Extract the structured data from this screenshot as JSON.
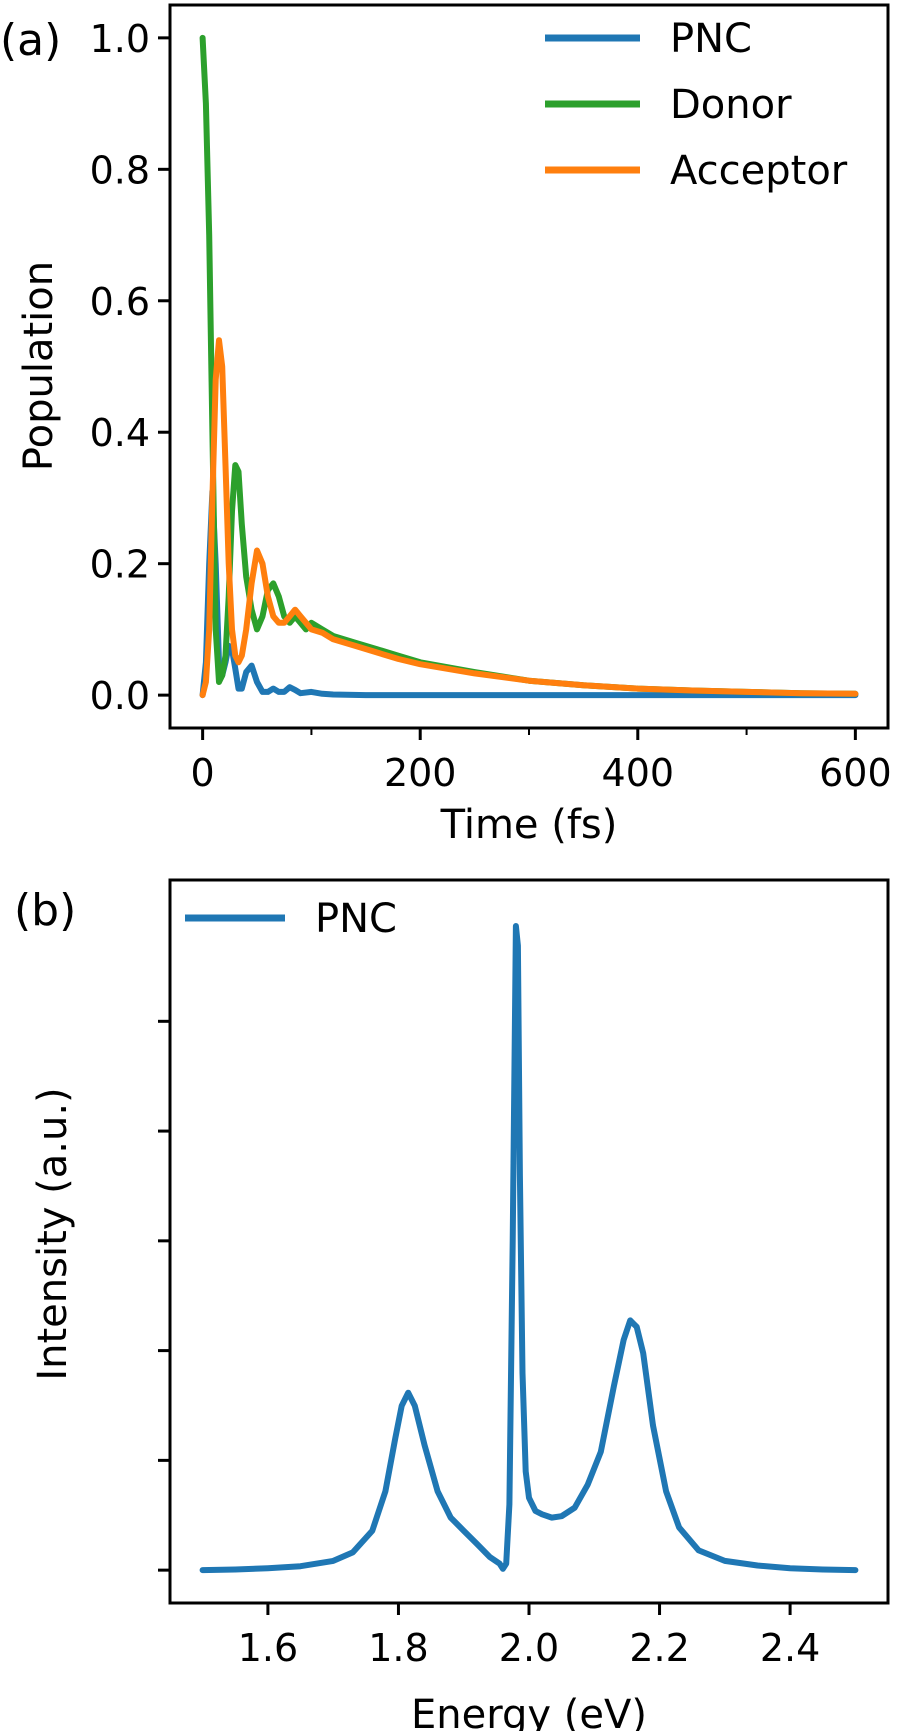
{
  "chart_data": [
    {
      "type": "line",
      "panel_label": "(a)",
      "xlabel": "Time (fs)",
      "ylabel": "Population",
      "xlim": [
        -30,
        630
      ],
      "ylim": [
        -0.05,
        1.05
      ],
      "xticks": [
        0,
        200,
        400,
        600
      ],
      "xtick_labels": [
        "0",
        "200",
        "400",
        "600"
      ],
      "xticks_minor": [
        100,
        300,
        500
      ],
      "yticks": [
        0.0,
        0.2,
        0.4,
        0.6,
        0.8,
        1.0
      ],
      "ytick_labels": [
        "0.0",
        "0.2",
        "0.4",
        "0.6",
        "0.8",
        "1.0"
      ],
      "legend_position": "top-right",
      "series": [
        {
          "name": "PNC",
          "color": "#1f77b4",
          "x": [
            0,
            3,
            6,
            9,
            12,
            15,
            18,
            21,
            24,
            27,
            30,
            33,
            36,
            40,
            45,
            50,
            55,
            60,
            65,
            70,
            75,
            80,
            85,
            90,
            100,
            110,
            120,
            150,
            200,
            300,
            400,
            500,
            600
          ],
          "y": [
            0.0,
            0.05,
            0.2,
            0.31,
            0.2,
            0.05,
            0.03,
            0.05,
            0.075,
            0.07,
            0.04,
            0.01,
            0.01,
            0.035,
            0.045,
            0.02,
            0.005,
            0.005,
            0.01,
            0.005,
            0.005,
            0.012,
            0.008,
            0.003,
            0.005,
            0.002,
            0.001,
            0.0,
            0.0,
            0.0,
            0.0,
            0.0,
            0.0
          ]
        },
        {
          "name": "Donor",
          "color": "#2ca02c",
          "x": [
            0,
            3,
            6,
            9,
            12,
            15,
            18,
            21,
            24,
            27,
            30,
            33,
            36,
            40,
            45,
            50,
            55,
            60,
            65,
            70,
            75,
            80,
            85,
            90,
            95,
            100,
            110,
            120,
            140,
            160,
            180,
            200,
            250,
            300,
            350,
            400,
            450,
            500,
            550,
            600
          ],
          "y": [
            1.0,
            0.9,
            0.7,
            0.4,
            0.1,
            0.02,
            0.03,
            0.06,
            0.15,
            0.28,
            0.35,
            0.34,
            0.26,
            0.18,
            0.13,
            0.1,
            0.12,
            0.16,
            0.17,
            0.15,
            0.12,
            0.11,
            0.12,
            0.11,
            0.1,
            0.11,
            0.1,
            0.09,
            0.08,
            0.07,
            0.06,
            0.05,
            0.035,
            0.022,
            0.015,
            0.01,
            0.007,
            0.005,
            0.003,
            0.002
          ]
        },
        {
          "name": "Acceptor",
          "color": "#ff7f0e",
          "x": [
            0,
            3,
            6,
            9,
            12,
            15,
            18,
            21,
            24,
            27,
            30,
            33,
            36,
            40,
            45,
            50,
            55,
            60,
            65,
            70,
            75,
            80,
            85,
            90,
            95,
            100,
            110,
            120,
            140,
            160,
            180,
            200,
            250,
            300,
            350,
            400,
            450,
            500,
            550,
            600
          ],
          "y": [
            0.0,
            0.02,
            0.1,
            0.3,
            0.48,
            0.54,
            0.5,
            0.35,
            0.2,
            0.1,
            0.06,
            0.05,
            0.06,
            0.1,
            0.17,
            0.22,
            0.2,
            0.15,
            0.12,
            0.11,
            0.11,
            0.12,
            0.13,
            0.12,
            0.11,
            0.1,
            0.095,
            0.085,
            0.075,
            0.065,
            0.055,
            0.047,
            0.033,
            0.022,
            0.015,
            0.01,
            0.007,
            0.005,
            0.003,
            0.002
          ]
        }
      ]
    },
    {
      "type": "line",
      "panel_label": "(b)",
      "xlabel": "Energy (eV)",
      "ylabel": "Intensity (a.u.)",
      "xlim": [
        1.45,
        2.55
      ],
      "ylim": [
        -0.05,
        1.05
      ],
      "xticks": [
        1.6,
        1.8,
        2.0,
        2.2,
        2.4
      ],
      "xtick_labels": [
        "1.6",
        "1.8",
        "2.0",
        "2.2",
        "2.4"
      ],
      "yticks_unlabeled": [
        0.0,
        0.167,
        0.334,
        0.501,
        0.668,
        0.835
      ],
      "legend_position": "top-left",
      "series": [
        {
          "name": "PNC",
          "color": "#1f77b4",
          "x": [
            1.5,
            1.55,
            1.6,
            1.65,
            1.7,
            1.73,
            1.76,
            1.78,
            1.795,
            1.805,
            1.815,
            1.825,
            1.84,
            1.86,
            1.88,
            1.9,
            1.92,
            1.94,
            1.955,
            1.96,
            1.965,
            1.97,
            1.975,
            1.98,
            1.983,
            1.986,
            1.99,
            1.995,
            2.0,
            2.01,
            2.02,
            2.035,
            2.05,
            2.07,
            2.09,
            2.11,
            2.13,
            2.145,
            2.155,
            2.165,
            2.175,
            2.19,
            2.21,
            2.23,
            2.26,
            2.3,
            2.35,
            2.4,
            2.45,
            2.5
          ],
          "y": [
            0.0,
            0.001,
            0.003,
            0.006,
            0.014,
            0.027,
            0.06,
            0.12,
            0.2,
            0.25,
            0.27,
            0.25,
            0.19,
            0.12,
            0.08,
            0.06,
            0.04,
            0.02,
            0.01,
            0.002,
            0.01,
            0.1,
            0.5,
            0.98,
            0.95,
            0.6,
            0.3,
            0.15,
            0.11,
            0.09,
            0.085,
            0.08,
            0.082,
            0.095,
            0.13,
            0.18,
            0.28,
            0.35,
            0.38,
            0.37,
            0.33,
            0.22,
            0.12,
            0.065,
            0.03,
            0.014,
            0.007,
            0.003,
            0.001,
            0.0
          ]
        }
      ]
    }
  ]
}
